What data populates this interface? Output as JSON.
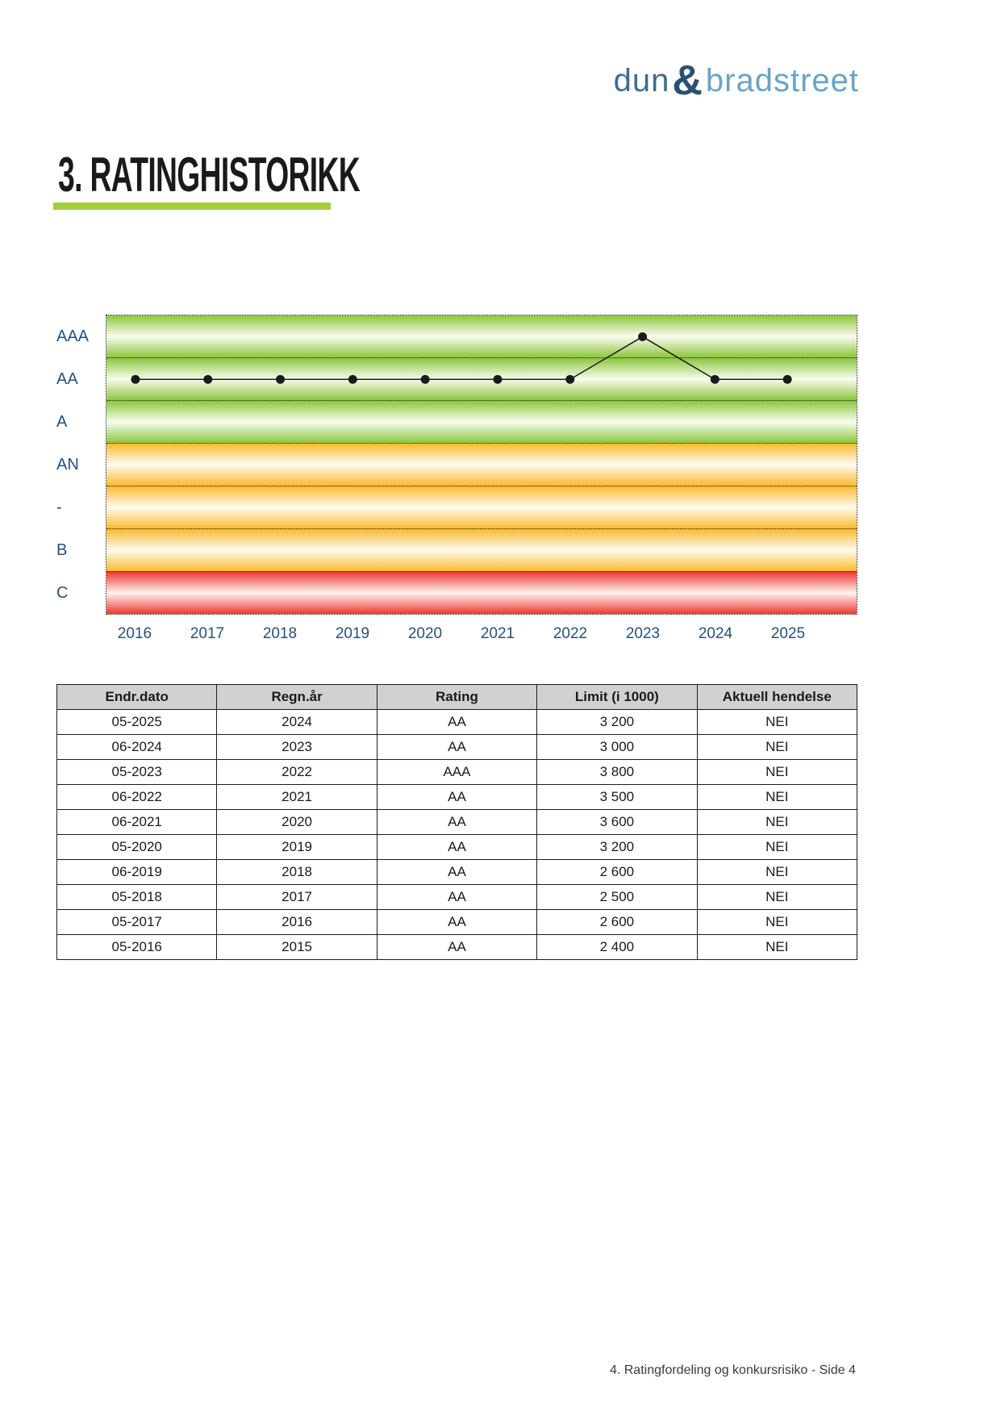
{
  "logo": {
    "part1": "dun",
    "amp": "&",
    "part2": "bradstreet",
    "colors": {
      "part1": "#3E6D92",
      "amp": "#2B5170",
      "part2": "#68A4C6"
    }
  },
  "heading": {
    "title": "3. RATINGHISTORIKK",
    "underline_color": "#A4CF3B"
  },
  "chart_data": {
    "type": "line",
    "title": "Ratinghistorikk",
    "x": [
      "2016",
      "2017",
      "2018",
      "2019",
      "2020",
      "2021",
      "2022",
      "2023",
      "2024",
      "2025"
    ],
    "series": [
      {
        "name": "Rating",
        "values": [
          "AA",
          "AA",
          "AA",
          "AA",
          "AA",
          "AA",
          "AA",
          "AAA",
          "AA",
          "AA"
        ]
      }
    ],
    "y_categories_top_to_bottom": [
      "AAA",
      "AA",
      "A",
      "AN",
      "-",
      "B",
      "C"
    ],
    "bands": [
      {
        "label": "AAA",
        "edge": "#8DC63F",
        "center": "#F9FCEF"
      },
      {
        "label": "AA",
        "edge": "#8DC63F",
        "center": "#F9FCEF"
      },
      {
        "label": "A",
        "edge": "#8DC63F",
        "center": "#F9FCEF"
      },
      {
        "label": "AN",
        "edge": "#FBBA30",
        "center": "#FEFBF1"
      },
      {
        "label": "-",
        "edge": "#FBBA30",
        "center": "#FEFBF1"
      },
      {
        "label": "B",
        "edge": "#FBBA30",
        "center": "#FEFBF1"
      },
      {
        "label": "C",
        "edge": "#EE3831",
        "center": "#FDF3F1"
      }
    ],
    "point_color": "#1a1a1a",
    "line_color": "#1a1a1a",
    "axis_label_color": "#27507B",
    "grid": "dotted-band-boundaries",
    "legend": "none"
  },
  "table": {
    "header_bg": "#D1D1D1",
    "headers": [
      "Endr.dato",
      "Regn.år",
      "Rating",
      "Limit (i 1000)",
      "Aktuell hendelse"
    ],
    "rows": [
      [
        "05-2025",
        "2024",
        "AA",
        "3 200",
        "NEI"
      ],
      [
        "06-2024",
        "2023",
        "AA",
        "3 000",
        "NEI"
      ],
      [
        "05-2023",
        "2022",
        "AAA",
        "3 800",
        "NEI"
      ],
      [
        "06-2022",
        "2021",
        "AA",
        "3 500",
        "NEI"
      ],
      [
        "06-2021",
        "2020",
        "AA",
        "3 600",
        "NEI"
      ],
      [
        "05-2020",
        "2019",
        "AA",
        "3 200",
        "NEI"
      ],
      [
        "06-2019",
        "2018",
        "AA",
        "2 600",
        "NEI"
      ],
      [
        "05-2018",
        "2017",
        "AA",
        "2 500",
        "NEI"
      ],
      [
        "05-2017",
        "2016",
        "AA",
        "2 600",
        "NEI"
      ],
      [
        "05-2016",
        "2015",
        "AA",
        "2 400",
        "NEI"
      ]
    ]
  },
  "footer": {
    "text": "4. Ratingfordeling og konkursrisiko - Side 4"
  }
}
